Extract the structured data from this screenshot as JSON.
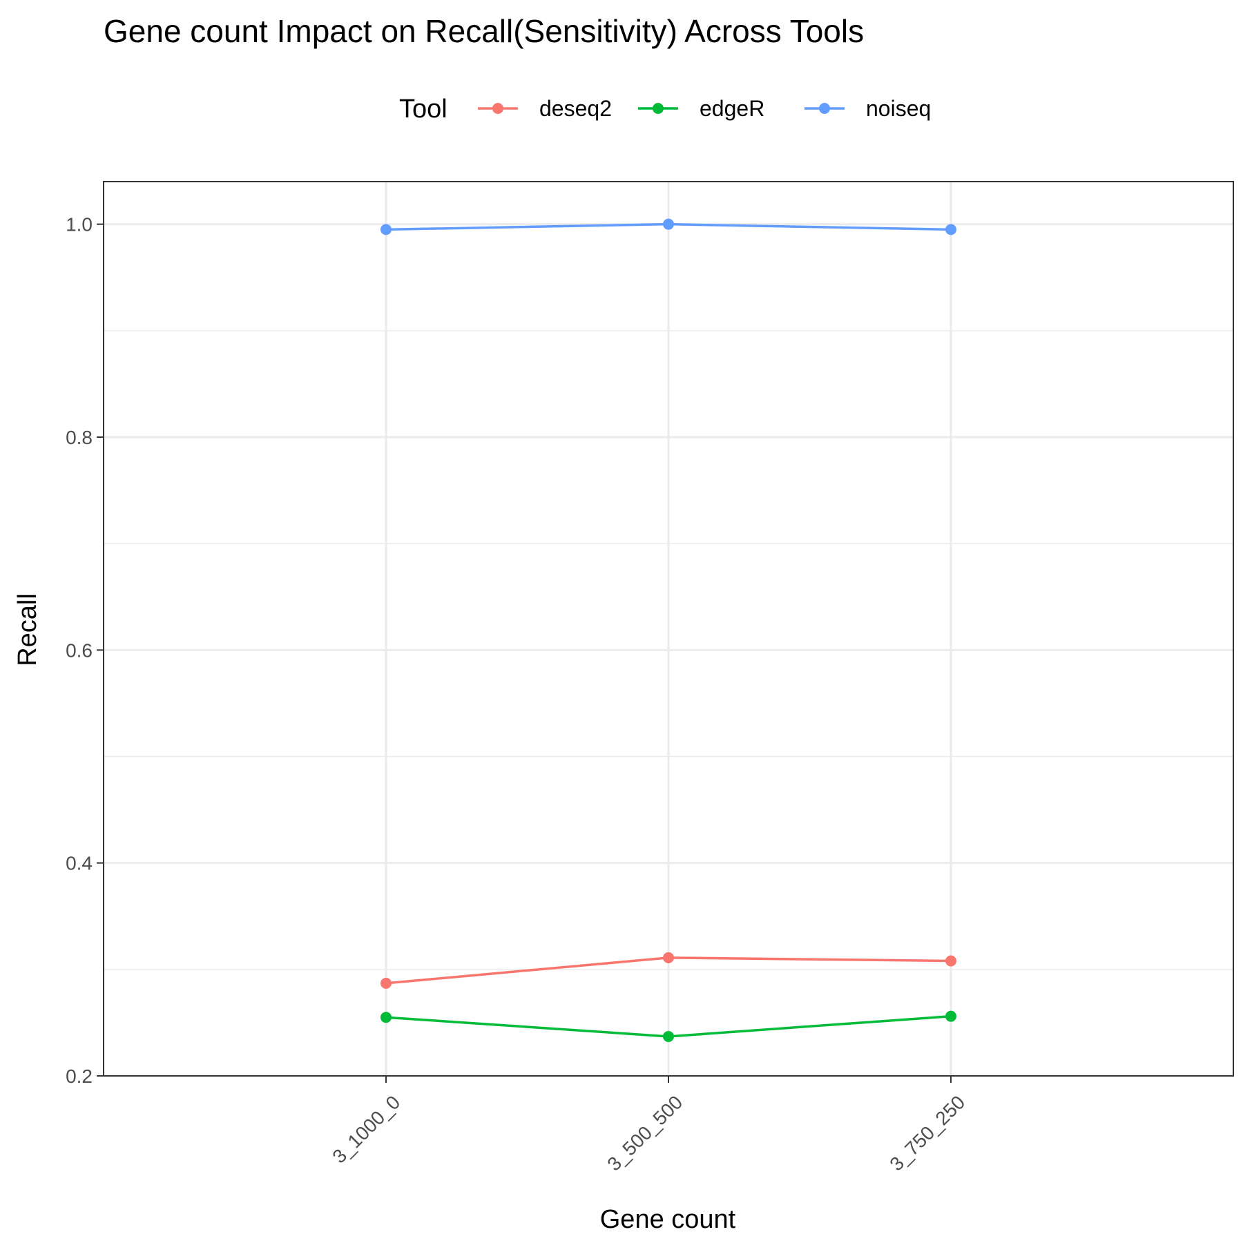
{
  "chart_data": {
    "type": "line",
    "title": "Gene count Impact on Recall(Sensitivity) Across Tools",
    "xlabel": "Gene count",
    "ylabel": "Recall",
    "categories": [
      "3_1000_0",
      "3_500_500",
      "3_750_250"
    ],
    "ylim": [
      0.2,
      1.04
    ],
    "yticks": [
      0.2,
      0.4,
      0.6,
      0.8,
      1.0
    ],
    "ytick_labels": [
      "0.2",
      "0.4",
      "0.6",
      "0.8",
      "1.0"
    ],
    "grid": true,
    "legend": {
      "title": "Tool",
      "position": "top"
    },
    "series": [
      {
        "name": "deseq2",
        "color": "#F8766D",
        "values": [
          0.287,
          0.311,
          0.308
        ]
      },
      {
        "name": "edgeR",
        "color": "#00BA38",
        "values": [
          0.255,
          0.237,
          0.256
        ]
      },
      {
        "name": "noiseq",
        "color": "#619CFF",
        "values": [
          0.995,
          1.0,
          0.995
        ]
      }
    ]
  }
}
